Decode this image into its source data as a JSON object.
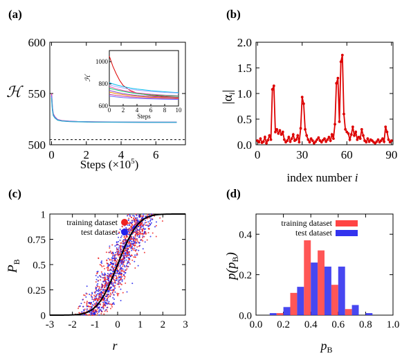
{
  "chart_data": [
    {
      "panel": "(a)",
      "type": "line",
      "ylabel": "ℋ",
      "xlabel": "Steps (×10",
      "xlabel_exp": "5",
      "xlabel_close": ")",
      "xlim": [
        -0.1,
        7.7
      ],
      "ylim": [
        500,
        600
      ],
      "xticks": [
        "0",
        "2",
        "4",
        "6"
      ],
      "xtick_values": [
        0,
        2,
        4,
        6
      ],
      "yticks": [
        "500",
        "550",
        "600"
      ],
      "ytick_values": [
        500,
        550,
        600
      ],
      "reference_line": 505,
      "series": [
        {
          "color": "#cc3399",
          "x": [
            0,
            0.05,
            0.1,
            0.2,
            0.35,
            0.6,
            1.0,
            1.5,
            2.5,
            4,
            5.5,
            7.2
          ],
          "y": [
            550,
            536,
            530,
            527,
            524.5,
            523.5,
            523,
            522.6,
            522.3,
            522.1,
            522.0,
            522.0
          ]
        },
        {
          "color": "#6666ff",
          "x": [
            0,
            0.05,
            0.1,
            0.2,
            0.35,
            0.6,
            1.0,
            1.5,
            2.5,
            4,
            5.5,
            7.2
          ],
          "y": [
            548,
            535,
            529,
            526.5,
            524.2,
            523.3,
            522.8,
            522.5,
            522.2,
            522.0,
            521.9,
            521.9
          ]
        },
        {
          "color": "#33aacc",
          "x": [
            0,
            0.05,
            0.1,
            0.2,
            0.35,
            0.6,
            1.0,
            1.5,
            2.5,
            4,
            5.5,
            7.2
          ],
          "y": [
            546,
            534,
            528.5,
            526,
            524,
            523.2,
            522.7,
            522.4,
            522.1,
            522.0,
            521.9,
            521.9
          ]
        }
      ],
      "inset": {
        "xlabel": "Steps",
        "ylabel": "ℋ",
        "xlim": [
          0,
          10
        ],
        "ylim": [
          600,
          1100
        ],
        "xticks": [
          "0",
          "2",
          "4",
          "6",
          "8",
          "10"
        ],
        "xtick_values": [
          0,
          2,
          4,
          6,
          8,
          10
        ],
        "yticks": [
          "600",
          "800",
          "1000"
        ],
        "ytick_values": [
          600,
          800,
          1000
        ],
        "series": [
          {
            "color": "#dd0000",
            "x": [
              0,
              0.5,
              1,
              1.5,
              2,
              3,
              4,
              6,
              8,
              10
            ],
            "y": [
              1050,
              960,
              890,
              830,
              785,
              740,
              715,
              695,
              685,
              678
            ]
          },
          {
            "color": "#00bbee",
            "x": [
              0,
              1,
              2,
              3,
              4,
              6,
              8,
              10
            ],
            "y": [
              810,
              790,
              775,
              762,
              752,
              738,
              728,
              720
            ]
          },
          {
            "color": "#aaaaff",
            "x": [
              0,
              1,
              2,
              3,
              4,
              6,
              8,
              10
            ],
            "y": [
              790,
              775,
              762,
              750,
              742,
              730,
              722,
              716
            ]
          },
          {
            "color": "#ff44aa",
            "x": [
              0,
              1,
              2,
              3,
              4,
              6,
              8,
              10
            ],
            "y": [
              775,
              755,
              740,
              728,
              718,
              706,
              698,
              692
            ]
          },
          {
            "color": "#00cc66",
            "x": [
              0,
              1,
              2,
              3,
              4,
              6,
              8,
              10
            ],
            "y": [
              760,
              745,
              732,
              720,
              712,
              700,
              693,
              688
            ]
          },
          {
            "color": "#8844cc",
            "x": [
              0,
              1,
              2,
              3,
              4,
              6,
              8,
              10
            ],
            "y": [
              740,
              725,
              712,
              702,
              695,
              686,
              680,
              676
            ]
          },
          {
            "color": "#ee8800",
            "x": [
              0,
              1,
              2,
              3,
              4,
              6,
              8,
              10
            ],
            "y": [
              725,
              712,
              702,
              694,
              688,
              680,
              675,
              671
            ]
          },
          {
            "color": "#cc3399",
            "x": [
              0,
              1,
              2,
              3,
              4,
              6,
              8,
              10
            ],
            "y": [
              705,
              695,
              688,
              682,
              678,
              672,
              668,
              665
            ]
          },
          {
            "color": "#6666ff",
            "x": [
              0,
              1,
              2,
              3,
              4,
              6,
              8,
              10
            ],
            "y": [
              690,
              682,
              676,
              672,
              668,
              664,
              661,
              659
            ]
          }
        ]
      }
    },
    {
      "panel": "(b)",
      "type": "line",
      "ylabel_pre": "|α",
      "ylabel_sub": "i",
      "ylabel_post": "|",
      "xlabel": "index number ",
      "xlabel_italic": "i",
      "xlim": [
        -1,
        91
      ],
      "ylim": [
        0,
        2.0
      ],
      "xticks": [
        "0",
        "30",
        "60",
        "90"
      ],
      "xtick_values": [
        0,
        30,
        60,
        90
      ],
      "yticks": [
        "0.0",
        "0.5",
        "1.0",
        "1.5",
        "2.0"
      ],
      "ytick_values": [
        0,
        0.5,
        1.0,
        1.5,
        2.0
      ],
      "color": "#dd0000",
      "values": [
        0.08,
        0.05,
        0.12,
        0.04,
        0.06,
        0.15,
        0.03,
        0.09,
        0.18,
        0.1,
        1.08,
        1.15,
        0.25,
        0.3,
        0.22,
        0.28,
        0.2,
        0.25,
        0.1,
        0.05,
        0.08,
        0.15,
        0.06,
        0.12,
        0.2,
        0.08,
        0.1,
        0.18,
        0.05,
        0.32,
        0.93,
        0.8,
        0.3,
        0.18,
        0.1,
        0.05,
        0.12,
        0.08,
        0.03,
        0.06,
        0.1,
        0.14,
        0.08,
        0.05,
        0.09,
        0.12,
        0.06,
        0.1,
        0.15,
        0.08,
        0.2,
        0.12,
        0.4,
        1.2,
        1.3,
        0.45,
        1.62,
        1.75,
        0.6,
        0.3,
        0.25,
        0.22,
        0.1,
        0.2,
        0.35,
        0.18,
        0.25,
        0.1,
        0.15,
        0.12,
        0.3,
        0.18,
        0.08,
        0.05,
        0.12,
        0.06,
        0.1,
        0.08,
        0.05,
        0.03,
        0.06,
        0.1,
        0.05,
        0.08,
        0.12,
        0.06,
        0.35,
        0.25,
        0.1,
        0.05,
        0.08
      ]
    },
    {
      "panel": "(c)",
      "type": "scatter",
      "ylabel": "P",
      "ylabel_sub": "B",
      "xlabel": "r",
      "xlim": [
        -3,
        3
      ],
      "ylim": [
        0,
        1
      ],
      "xticks": [
        "-3",
        "-2",
        "-1",
        "0",
        "1",
        "2",
        "3"
      ],
      "xtick_values": [
        -3,
        -2,
        -1,
        0,
        1,
        2,
        3
      ],
      "yticks": [
        "0",
        "0.25",
        "0.5",
        "0.75",
        "1"
      ],
      "ytick_values": [
        0,
        0.25,
        0.5,
        0.75,
        1
      ],
      "curve": "0.5*(1+erf(r))",
      "legend": [
        {
          "label": "training dataset",
          "color": "#ee2222"
        },
        {
          "label": "test dataset",
          "color": "#2222ee"
        }
      ],
      "legend_position": "top-left"
    },
    {
      "panel": "(d)",
      "type": "bar",
      "ylabel_pre": "p(p",
      "ylabel_sub": "B",
      "ylabel_post": ")",
      "xlabel": "p",
      "xlabel_sub": "B",
      "xlim": [
        0,
        1
      ],
      "ylim": [
        0,
        0.5
      ],
      "xticks": [
        "0.0",
        "0.2",
        "0.4",
        "0.6",
        "0.8",
        "1.0"
      ],
      "xtick_values": [
        0,
        0.2,
        0.4,
        0.6,
        0.8,
        1.0
      ],
      "yticks": [
        "0.0",
        "0.2",
        "0.4"
      ],
      "ytick_values": [
        0,
        0.2,
        0.4
      ],
      "bin_centers": [
        0.1,
        0.2,
        0.3,
        0.4,
        0.5,
        0.6,
        0.7,
        0.8,
        0.9
      ],
      "series": [
        {
          "name": "training dataset",
          "color": "#ff4444",
          "values": [
            0.0,
            0.01,
            0.11,
            0.37,
            0.32,
            0.15,
            0.03,
            0.0,
            0.0
          ]
        },
        {
          "name": "test dataset",
          "color": "#3333ee",
          "values": [
            0.01,
            0.04,
            0.14,
            0.26,
            0.24,
            0.24,
            0.05,
            0.01,
            0.0
          ]
        }
      ],
      "legend_position": "top-right"
    }
  ]
}
